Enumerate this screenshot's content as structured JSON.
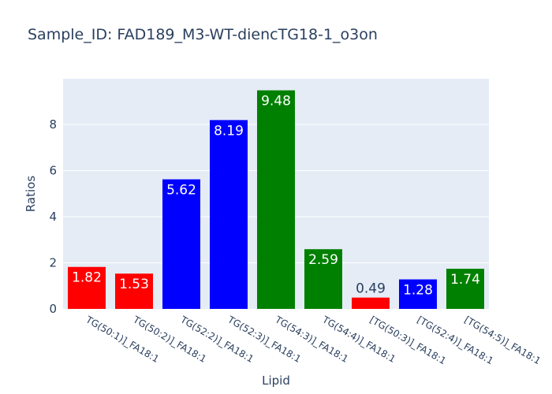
{
  "chart_data": {
    "type": "bar",
    "title": "Sample_ID: FAD189_M3-WT-diencTG18-1_o3on",
    "xlabel": "Lipid",
    "ylabel": "Ratios",
    "categories": [
      "TG(50:1)]_FA18:1",
      "TG(50:2)]_FA18:1",
      "TG(52:2)]_FA18:1",
      "TG(52:3)]_FA18:1",
      "TG(54:3)]_FA18:1",
      "TG(54:4)]_FA18:1",
      "[TG(50:3)]_FA18:1",
      "[TG(52:4)]_FA18:1",
      "[TG(54:5)]_FA18:1"
    ],
    "values": [
      1.82,
      1.53,
      5.62,
      8.19,
      9.48,
      2.59,
      0.49,
      1.28,
      1.74
    ],
    "data_labels": [
      "1.82",
      "1.53",
      "5.62",
      "8.19",
      "9.48",
      "2.59",
      "0.49",
      "1.28",
      "1.74"
    ],
    "bar_colors": [
      "#ff0000",
      "#ff0000",
      "#0000ff",
      "#0000ff",
      "#008000",
      "#008000",
      "#ff0000",
      "#0000ff",
      "#008000"
    ],
    "ylim": [
      0,
      9.98
    ],
    "yticks": [
      0,
      2,
      4,
      6,
      8
    ],
    "grid": true,
    "plot_background": "#e5ecf6",
    "text_color": "#2a3f5f"
  }
}
